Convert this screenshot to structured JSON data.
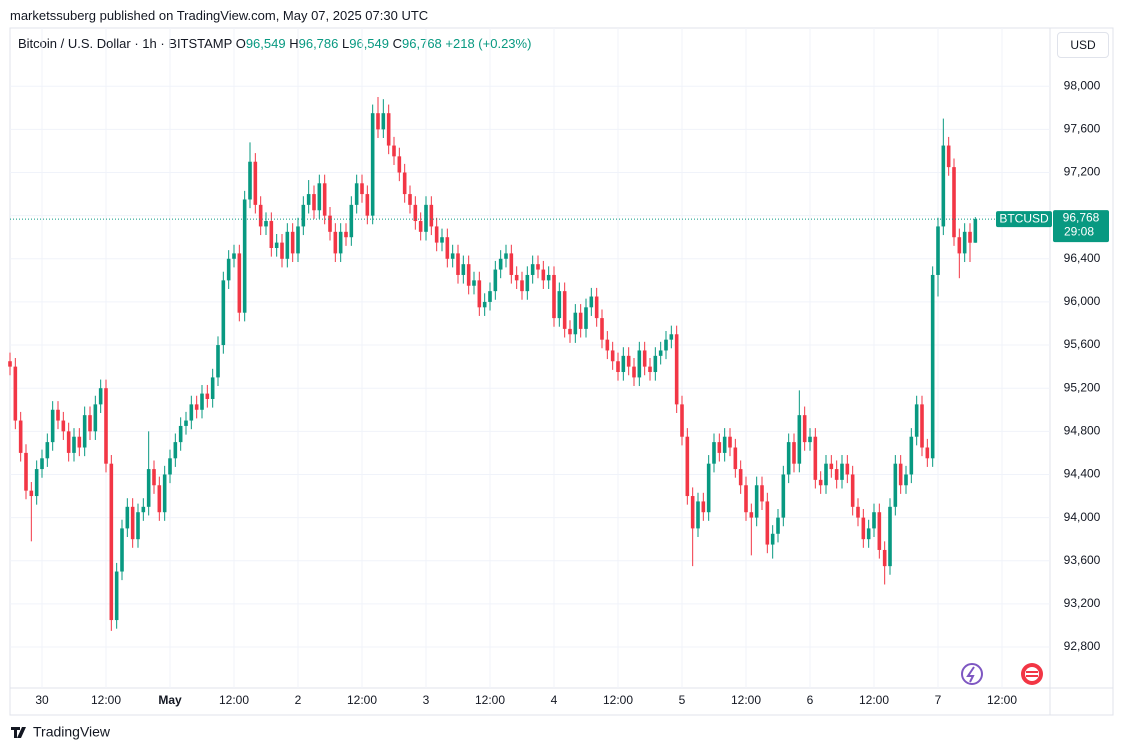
{
  "header": {
    "published": "marketssuberg published on TradingView.com, May 07, 2025 07:30 UTC",
    "symbol": "Bitcoin / U.S. Dollar · 1h · BITSTAMP",
    "o_key": "O",
    "o_value": "96,549",
    "h_key": "H",
    "h_value": "96,786",
    "l_key": "L",
    "l_value": "96,549",
    "c_key": "C",
    "c_value": "96,768",
    "change": "+218 (+0.23%)",
    "currency": "USD"
  },
  "footer": {
    "brand": "TradingView"
  },
  "chart_data": {
    "type": "candlestick",
    "up_color": "#089981",
    "down_color": "#f23645",
    "grid": true,
    "price_tag": {
      "name": "BTCUSD",
      "label": "96,768",
      "countdown": "29:08"
    },
    "xlim": [
      0,
      195
    ],
    "xticks": [
      {
        "value": 6,
        "label": "30"
      },
      {
        "value": 18,
        "label": "12:00"
      },
      {
        "value": 30,
        "label": "May"
      },
      {
        "value": 42,
        "label": "12:00"
      },
      {
        "value": 54,
        "label": "2"
      },
      {
        "value": 66,
        "label": "12:00"
      },
      {
        "value": 78,
        "label": "3"
      },
      {
        "value": 90,
        "label": "12:00"
      },
      {
        "value": 102,
        "label": "4"
      },
      {
        "value": 114,
        "label": "12:00"
      },
      {
        "value": 126,
        "label": "5"
      },
      {
        "value": 138,
        "label": "12:00"
      },
      {
        "value": 150,
        "label": "6"
      },
      {
        "value": 162,
        "label": "12:00"
      },
      {
        "value": 174,
        "label": "7"
      },
      {
        "value": 186,
        "label": "12:00"
      }
    ],
    "ylim": [
      92420,
      98540
    ],
    "yticks": [
      {
        "value": 92800,
        "label": "92,800"
      },
      {
        "value": 93200,
        "label": "93,200"
      },
      {
        "value": 93600,
        "label": "93,600"
      },
      {
        "value": 94000,
        "label": "94,000"
      },
      {
        "value": 94400,
        "label": "94,400"
      },
      {
        "value": 94800,
        "label": "94,800"
      },
      {
        "value": 95200,
        "label": "95,200"
      },
      {
        "value": 95600,
        "label": "95,600"
      },
      {
        "value": 96000,
        "label": "96,000"
      },
      {
        "value": 96400,
        "label": "96,400"
      },
      {
        "value": 96800,
        "label": "96,800"
      },
      {
        "value": 97200,
        "label": "97,200"
      },
      {
        "value": 97600,
        "label": "97,600"
      },
      {
        "value": 98000,
        "label": "98,000"
      }
    ],
    "ohlc": [
      [
        95450,
        95530,
        95320,
        95400
      ],
      [
        95400,
        95480,
        94820,
        94900
      ],
      [
        94900,
        94980,
        94520,
        94600
      ],
      [
        94600,
        94680,
        94170,
        94250
      ],
      [
        94250,
        94330,
        93780,
        94200
      ],
      [
        94200,
        94530,
        94120,
        94450
      ],
      [
        94450,
        94630,
        94370,
        94550
      ],
      [
        94550,
        94780,
        94470,
        94700
      ],
      [
        94700,
        95080,
        94620,
        95000
      ],
      [
        95000,
        95080,
        94820,
        94900
      ],
      [
        94900,
        94980,
        94720,
        94800
      ],
      [
        94800,
        94880,
        94520,
        94600
      ],
      [
        94600,
        94830,
        94520,
        94750
      ],
      [
        94750,
        94830,
        94570,
        94650
      ],
      [
        94650,
        95030,
        94570,
        94950
      ],
      [
        94950,
        95030,
        94720,
        94800
      ],
      [
        94800,
        95130,
        94720,
        95050
      ],
      [
        95050,
        95280,
        94970,
        95200
      ],
      [
        95200,
        95280,
        94420,
        94500
      ],
      [
        94500,
        94580,
        92950,
        93050
      ],
      [
        93050,
        93580,
        92970,
        93500
      ],
      [
        93500,
        93980,
        93420,
        93900
      ],
      [
        93900,
        94180,
        93820,
        94100
      ],
      [
        94100,
        94180,
        93720,
        93800
      ],
      [
        93800,
        94130,
        93720,
        94050
      ],
      [
        94050,
        94180,
        93970,
        94100
      ],
      [
        94100,
        94800,
        94020,
        94450
      ],
      [
        94450,
        94530,
        94220,
        94300
      ],
      [
        94300,
        94380,
        93970,
        94050
      ],
      [
        94050,
        94480,
        93970,
        94400
      ],
      [
        94400,
        94630,
        94320,
        94550
      ],
      [
        94550,
        94780,
        94470,
        94700
      ],
      [
        94700,
        94930,
        94620,
        94850
      ],
      [
        94850,
        94980,
        94770,
        94900
      ],
      [
        94900,
        95130,
        94820,
        95050
      ],
      [
        95050,
        95130,
        94920,
        95000
      ],
      [
        95000,
        95230,
        94920,
        95150
      ],
      [
        95150,
        95230,
        95020,
        95100
      ],
      [
        95100,
        95380,
        95020,
        95300
      ],
      [
        95300,
        95680,
        95220,
        95600
      ],
      [
        95600,
        96280,
        95520,
        96200
      ],
      [
        96200,
        96480,
        96120,
        96400
      ],
      [
        96400,
        96530,
        96320,
        96450
      ],
      [
        96450,
        96530,
        95820,
        95900
      ],
      [
        95900,
        97030,
        95820,
        96950
      ],
      [
        96950,
        97480,
        96870,
        97300
      ],
      [
        97300,
        97380,
        96820,
        96900
      ],
      [
        96900,
        96980,
        96620,
        96700
      ],
      [
        96700,
        96830,
        96620,
        96750
      ],
      [
        96750,
        96830,
        96420,
        96500
      ],
      [
        96500,
        96630,
        96420,
        96550
      ],
      [
        96550,
        96630,
        96320,
        96400
      ],
      [
        96400,
        96730,
        96320,
        96650
      ],
      [
        96650,
        96730,
        96370,
        96450
      ],
      [
        96450,
        96780,
        96370,
        96700
      ],
      [
        96700,
        96980,
        96620,
        96900
      ],
      [
        96900,
        97130,
        96820,
        97000
      ],
      [
        97000,
        97080,
        96770,
        96850
      ],
      [
        96850,
        97180,
        96770,
        97100
      ],
      [
        97100,
        97180,
        96720,
        96800
      ],
      [
        96800,
        96880,
        96570,
        96650
      ],
      [
        96650,
        96730,
        96370,
        96450
      ],
      [
        96450,
        96730,
        96370,
        96650
      ],
      [
        96650,
        96730,
        96520,
        96600
      ],
      [
        96600,
        96980,
        96520,
        96900
      ],
      [
        96900,
        97180,
        96820,
        97100
      ],
      [
        97100,
        97180,
        96920,
        97000
      ],
      [
        97000,
        97080,
        96720,
        96800
      ],
      [
        96800,
        97830,
        96720,
        97750
      ],
      [
        97750,
        97900,
        97520,
        97600
      ],
      [
        97600,
        97880,
        97520,
        97750
      ],
      [
        97750,
        97830,
        97370,
        97450
      ],
      [
        97450,
        97530,
        97270,
        97350
      ],
      [
        97350,
        97430,
        97120,
        97200
      ],
      [
        97200,
        97280,
        96920,
        97000
      ],
      [
        97000,
        97080,
        96820,
        96900
      ],
      [
        96900,
        96980,
        96670,
        96750
      ],
      [
        96750,
        96830,
        96570,
        96650
      ],
      [
        96650,
        96980,
        96570,
        96900
      ],
      [
        96900,
        96980,
        96620,
        96700
      ],
      [
        96700,
        96780,
        96470,
        96550
      ],
      [
        96550,
        96680,
        96470,
        96600
      ],
      [
        96600,
        96680,
        96320,
        96400
      ],
      [
        96400,
        96530,
        96320,
        96450
      ],
      [
        96450,
        96530,
        96170,
        96250
      ],
      [
        96250,
        96430,
        96170,
        96350
      ],
      [
        96350,
        96430,
        96070,
        96150
      ],
      [
        96150,
        96280,
        96070,
        96200
      ],
      [
        96200,
        96280,
        95870,
        95950
      ],
      [
        95950,
        96080,
        95870,
        96000
      ],
      [
        96000,
        96180,
        95920,
        96100
      ],
      [
        96100,
        96380,
        96020,
        96300
      ],
      [
        96300,
        96480,
        96220,
        96400
      ],
      [
        96400,
        96530,
        96320,
        96450
      ],
      [
        96450,
        96530,
        96170,
        96250
      ],
      [
        96250,
        96330,
        96120,
        96200
      ],
      [
        96200,
        96280,
        96020,
        96100
      ],
      [
        96100,
        96330,
        96020,
        96250
      ],
      [
        96250,
        96430,
        96170,
        96350
      ],
      [
        96350,
        96430,
        96220,
        96300
      ],
      [
        96300,
        96380,
        96120,
        96200
      ],
      [
        96200,
        96330,
        96120,
        96250
      ],
      [
        96250,
        96330,
        95770,
        95850
      ],
      [
        95850,
        96180,
        95770,
        96100
      ],
      [
        96100,
        96180,
        95670,
        95750
      ],
      [
        95750,
        95830,
        95620,
        95700
      ],
      [
        95700,
        95980,
        95620,
        95900
      ],
      [
        95900,
        95980,
        95670,
        95750
      ],
      [
        95750,
        96030,
        95670,
        95950
      ],
      [
        95950,
        96130,
        95870,
        96050
      ],
      [
        96050,
        96130,
        95770,
        95850
      ],
      [
        95850,
        95930,
        95570,
        95650
      ],
      [
        95650,
        95730,
        95470,
        95550
      ],
      [
        95550,
        95630,
        95370,
        95450
      ],
      [
        95450,
        95530,
        95270,
        95350
      ],
      [
        95350,
        95580,
        95270,
        95500
      ],
      [
        95500,
        95580,
        95320,
        95400
      ],
      [
        95400,
        95480,
        95220,
        95300
      ],
      [
        95300,
        95630,
        95220,
        95550
      ],
      [
        95550,
        95630,
        95320,
        95400
      ],
      [
        95400,
        95480,
        95270,
        95350
      ],
      [
        95350,
        95580,
        95270,
        95500
      ],
      [
        95500,
        95630,
        95420,
        95550
      ],
      [
        95550,
        95730,
        95470,
        95650
      ],
      [
        95650,
        95780,
        95570,
        95700
      ],
      [
        95700,
        95780,
        94970,
        95050
      ],
      [
        95050,
        95130,
        94670,
        94750
      ],
      [
        94750,
        94830,
        94120,
        94200
      ],
      [
        94200,
        94280,
        93550,
        93900
      ],
      [
        93900,
        94230,
        93820,
        94150
      ],
      [
        94150,
        94230,
        93970,
        94050
      ],
      [
        94050,
        94580,
        93970,
        94500
      ],
      [
        94500,
        94780,
        94420,
        94700
      ],
      [
        94700,
        94780,
        94520,
        94600
      ],
      [
        94600,
        94830,
        94520,
        94750
      ],
      [
        94750,
        94830,
        94570,
        94650
      ],
      [
        94650,
        94730,
        94370,
        94450
      ],
      [
        94450,
        94530,
        94220,
        94300
      ],
      [
        94300,
        94380,
        93970,
        94050
      ],
      [
        94050,
        94130,
        93650,
        94000
      ],
      [
        94000,
        94380,
        93920,
        94300
      ],
      [
        94300,
        94380,
        94070,
        94150
      ],
      [
        94150,
        94230,
        93670,
        93750
      ],
      [
        93750,
        93930,
        93620,
        93850
      ],
      [
        93850,
        94080,
        93770,
        94000
      ],
      [
        94000,
        94480,
        93920,
        94400
      ],
      [
        94400,
        94780,
        94320,
        94700
      ],
      [
        94700,
        94780,
        94420,
        94500
      ],
      [
        94500,
        95180,
        94420,
        94950
      ],
      [
        94950,
        95030,
        94620,
        94700
      ],
      [
        94700,
        94830,
        94620,
        94750
      ],
      [
        94750,
        94830,
        94270,
        94350
      ],
      [
        94350,
        94430,
        94220,
        94300
      ],
      [
        94300,
        94580,
        94220,
        94500
      ],
      [
        94500,
        94580,
        94370,
        94450
      ],
      [
        94450,
        94530,
        94270,
        94350
      ],
      [
        94350,
        94580,
        94270,
        94500
      ],
      [
        94500,
        94580,
        94320,
        94400
      ],
      [
        94400,
        94480,
        94020,
        94100
      ],
      [
        94100,
        94180,
        93920,
        94000
      ],
      [
        94000,
        94080,
        93720,
        93800
      ],
      [
        93800,
        93980,
        93720,
        93900
      ],
      [
        93900,
        94130,
        93820,
        94050
      ],
      [
        94050,
        94130,
        93620,
        93700
      ],
      [
        93700,
        93780,
        93380,
        93550
      ],
      [
        93550,
        94180,
        93470,
        94100
      ],
      [
        94100,
        94580,
        94020,
        94500
      ],
      [
        94500,
        94580,
        94220,
        94300
      ],
      [
        94300,
        94480,
        94220,
        94400
      ],
      [
        94400,
        94830,
        94320,
        94750
      ],
      [
        94750,
        95130,
        94670,
        95050
      ],
      [
        95050,
        95130,
        94570,
        94650
      ],
      [
        94650,
        94730,
        94470,
        94550
      ],
      [
        94550,
        96330,
        94470,
        96250
      ],
      [
        96250,
        96780,
        96050,
        96700
      ],
      [
        96700,
        97700,
        96620,
        97450
      ],
      [
        97450,
        97530,
        97170,
        97250
      ],
      [
        97250,
        97330,
        96520,
        96600
      ],
      [
        96600,
        96680,
        96220,
        96450
      ],
      [
        96450,
        96730,
        96370,
        96650
      ],
      [
        96650,
        96730,
        96370,
        96549
      ],
      [
        96549,
        96786,
        96549,
        96768
      ]
    ]
  }
}
